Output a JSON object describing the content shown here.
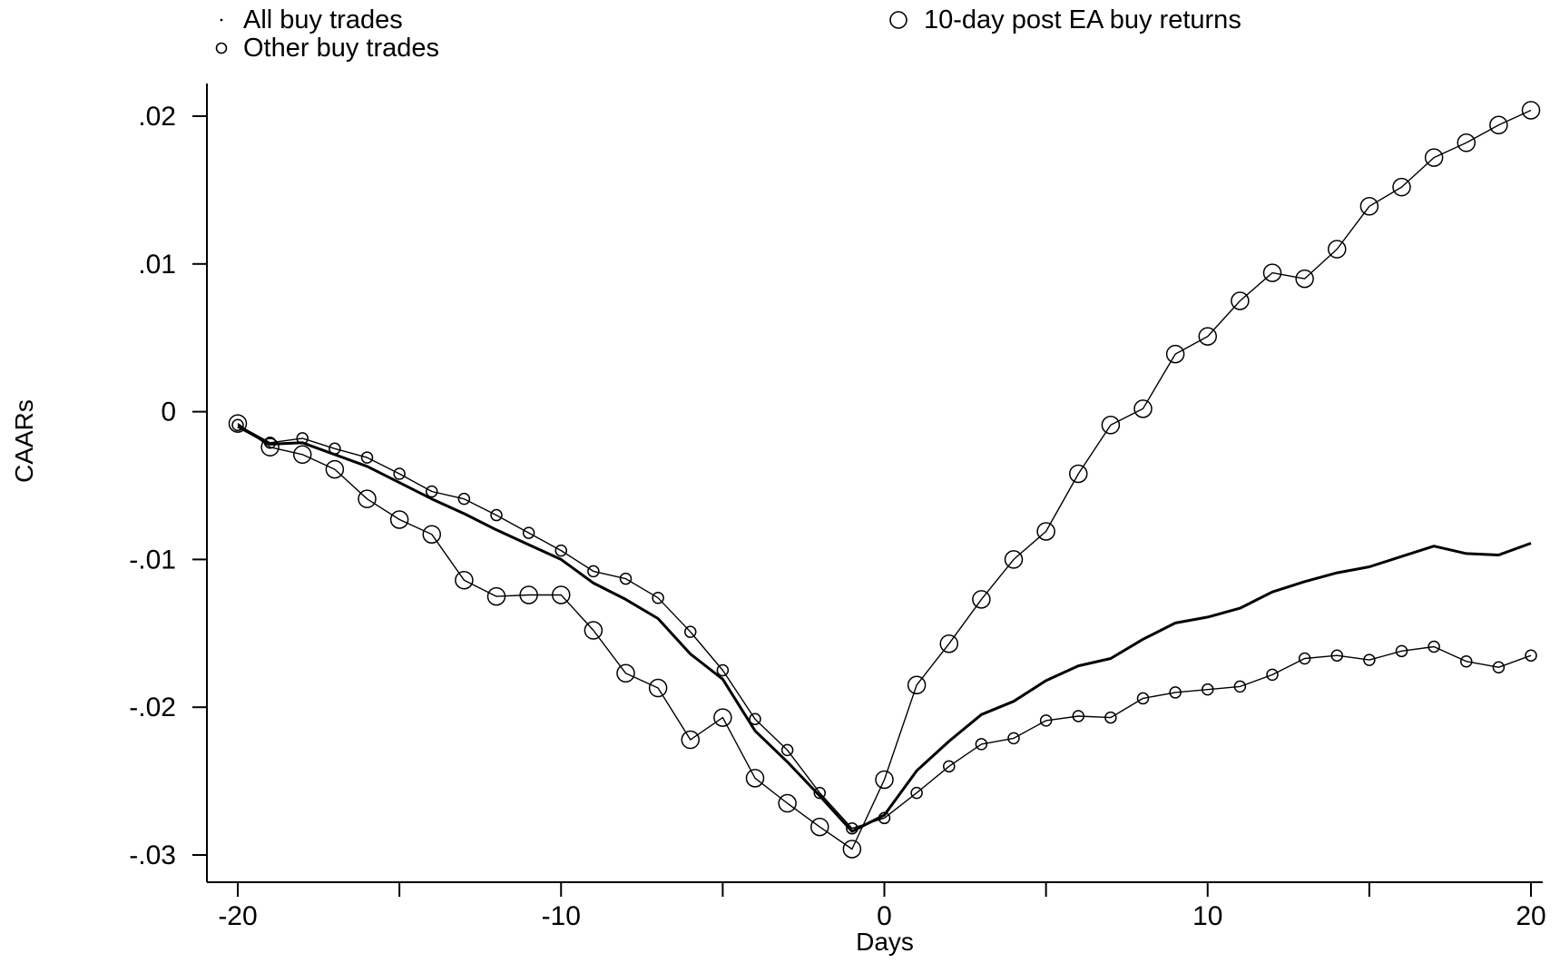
{
  "chart_data": {
    "type": "line",
    "xlabel": "Days",
    "ylabel": "CAARs",
    "xlim": [
      -21,
      21
    ],
    "ylim": [
      -0.0318,
      0.0225
    ],
    "xticks": [
      -20,
      -15,
      -10,
      -5,
      0,
      5,
      10,
      15,
      20
    ],
    "xtick_labels": [
      "-20",
      "",
      "-10",
      "",
      "0",
      "",
      "10",
      "",
      "20"
    ],
    "yticks": [
      0.02,
      0.01,
      0,
      -0.01,
      -0.02,
      -0.03
    ],
    "ytick_labels": [
      ".02",
      ".01",
      "0",
      "-.01",
      "-.02",
      "-.03"
    ],
    "grid": false,
    "legend": [
      {
        "label": "All buy trades",
        "marker": "dot"
      },
      {
        "label": "Other buy trades",
        "marker": "small-circle"
      },
      {
        "label": "10-day post EA buy returns",
        "marker": "large-circle"
      }
    ],
    "x": [
      -20,
      -19,
      -18,
      -17,
      -16,
      -15,
      -14,
      -13,
      -12,
      -11,
      -10,
      -9,
      -8,
      -7,
      -6,
      -5,
      -4,
      -3,
      -2,
      -1,
      0,
      1,
      2,
      3,
      4,
      5,
      6,
      7,
      8,
      9,
      10,
      11,
      12,
      13,
      14,
      15,
      16,
      17,
      18,
      19,
      20
    ],
    "series": [
      {
        "name": "All buy trades",
        "marker": "dot",
        "line_width": 3,
        "values": [
          -0.001,
          -0.0022,
          -0.0021,
          -0.0029,
          -0.0037,
          -0.0048,
          -0.0059,
          -0.0069,
          -0.008,
          -0.009,
          -0.01,
          -0.0116,
          -0.0127,
          -0.014,
          -0.0164,
          -0.0181,
          -0.0216,
          -0.0237,
          -0.026,
          -0.0284,
          -0.0273,
          -0.0243,
          -0.0223,
          -0.0205,
          -0.0196,
          -0.0182,
          -0.0172,
          -0.0167,
          -0.0154,
          -0.0143,
          -0.0139,
          -0.0133,
          -0.0122,
          -0.0115,
          -0.0109,
          -0.0105,
          -0.0098,
          -0.0091,
          -0.0096,
          -0.0097,
          -0.0089
        ]
      },
      {
        "name": "Other buy trades",
        "marker": "small-circle",
        "line_width": 1.4,
        "values": [
          -0.0009,
          -0.0021,
          -0.0018,
          -0.0025,
          -0.0031,
          -0.0042,
          -0.0054,
          -0.0059,
          -0.007,
          -0.0082,
          -0.0094,
          -0.0108,
          -0.0113,
          -0.0126,
          -0.0149,
          -0.0175,
          -0.0208,
          -0.0229,
          -0.0258,
          -0.0282,
          -0.0275,
          -0.0258,
          -0.024,
          -0.0225,
          -0.0221,
          -0.0209,
          -0.0206,
          -0.0207,
          -0.0194,
          -0.019,
          -0.0188,
          -0.0186,
          -0.0178,
          -0.0167,
          -0.0165,
          -0.0168,
          -0.0162,
          -0.0159,
          -0.0169,
          -0.0173,
          -0.0165
        ]
      },
      {
        "name": "10-day post EA buy returns",
        "marker": "large-circle",
        "line_width": 1.4,
        "values": [
          -0.0008,
          -0.0024,
          -0.0029,
          -0.0039,
          -0.0059,
          -0.0073,
          -0.0083,
          -0.0114,
          -0.0125,
          -0.0124,
          -0.0124,
          -0.0148,
          -0.0177,
          -0.0187,
          -0.0222,
          -0.0207,
          -0.0248,
          -0.0265,
          -0.0281,
          -0.0296,
          -0.0249,
          -0.0185,
          -0.0157,
          -0.0127,
          -0.01,
          -0.0081,
          -0.0042,
          -0.0009,
          0.0002,
          0.0039,
          0.0051,
          0.0075,
          0.0094,
          0.009,
          0.011,
          0.0139,
          0.0152,
          0.0172,
          0.0182,
          0.0194,
          0.0204
        ]
      }
    ]
  }
}
